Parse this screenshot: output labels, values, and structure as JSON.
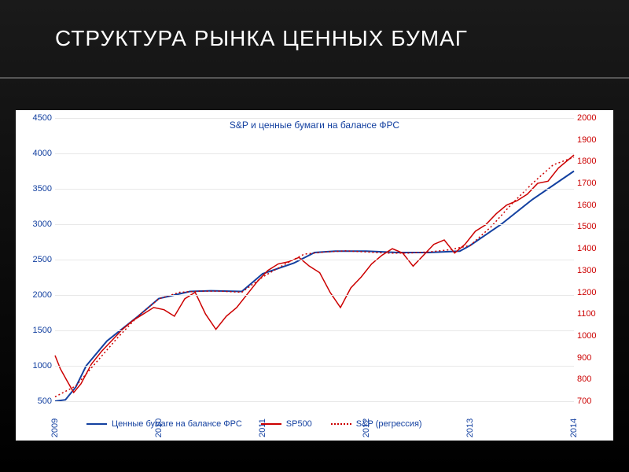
{
  "slide": {
    "title": "СТРУКТУРА РЫНКА ЦЕННЫХ БУМАГ",
    "title_color": "#ffffff",
    "title_fontsize": 28,
    "bg_gradient_from": "#1a1a1a",
    "bg_gradient_to": "#000000"
  },
  "chart": {
    "type": "line",
    "title": "S&P и ценные бумаги на балансе ФРС",
    "title_color": "#1340a0",
    "title_fontsize": 12,
    "background_color": "#ffffff",
    "grid_color": "#e8e8e8",
    "x": {
      "ticks": [
        "2009",
        "2010",
        "2011",
        "2012",
        "2013",
        "2014"
      ],
      "min": 2009,
      "max": 2014,
      "label_color": "#1340a0",
      "label_fontsize": 11
    },
    "y_left": {
      "min": 500,
      "max": 4500,
      "step": 500,
      "ticks": [
        500,
        1000,
        1500,
        2000,
        2500,
        3000,
        3500,
        4000,
        4500
      ],
      "label_color": "#1340a0",
      "label_fontsize": 11
    },
    "y_right": {
      "min": 700,
      "max": 2000,
      "step": 100,
      "ticks": [
        700,
        800,
        900,
        1000,
        1100,
        1200,
        1300,
        1400,
        1500,
        1600,
        1700,
        1800,
        1900,
        2000
      ],
      "label_color": "#cc0000",
      "label_fontsize": 11
    },
    "series": {
      "frs_balance": {
        "label": "Ценные бумаге на балансе ФРС",
        "axis": "left",
        "color": "#1340a0",
        "line_width": 2,
        "style": "solid",
        "points_x": [
          2009.0,
          2009.1,
          2009.2,
          2009.3,
          2009.5,
          2009.8,
          2010.0,
          2010.3,
          2010.5,
          2010.8,
          2011.0,
          2011.3,
          2011.5,
          2011.7,
          2012.0,
          2012.3,
          2012.6,
          2012.9,
          2013.0,
          2013.3,
          2013.6,
          2013.9,
          2014.0
        ],
        "points_y": [
          500,
          520,
          700,
          1000,
          1350,
          1700,
          1950,
          2050,
          2060,
          2050,
          2300,
          2450,
          2600,
          2620,
          2620,
          2600,
          2600,
          2620,
          2700,
          3000,
          3350,
          3650,
          3750
        ]
      },
      "sp500": {
        "label": "SP500",
        "axis": "right",
        "color": "#cc0000",
        "line_width": 1.5,
        "style": "solid",
        "points_x": [
          2009.0,
          2009.05,
          2009.12,
          2009.18,
          2009.25,
          2009.35,
          2009.45,
          2009.55,
          2009.65,
          2009.75,
          2009.85,
          2009.95,
          2010.05,
          2010.15,
          2010.25,
          2010.35,
          2010.45,
          2010.55,
          2010.65,
          2010.75,
          2010.85,
          2010.95,
          2011.05,
          2011.15,
          2011.25,
          2011.35,
          2011.45,
          2011.55,
          2011.65,
          2011.75,
          2011.85,
          2011.95,
          2012.05,
          2012.15,
          2012.25,
          2012.35,
          2012.45,
          2012.55,
          2012.65,
          2012.75,
          2012.85,
          2012.95,
          2013.05,
          2013.15,
          2013.25,
          2013.35,
          2013.45,
          2013.55,
          2013.65,
          2013.75,
          2013.85,
          2013.95,
          2014.0
        ],
        "points_y": [
          910,
          850,
          790,
          740,
          780,
          870,
          930,
          980,
          1030,
          1070,
          1100,
          1130,
          1120,
          1090,
          1170,
          1200,
          1100,
          1030,
          1090,
          1130,
          1190,
          1250,
          1300,
          1330,
          1340,
          1360,
          1320,
          1290,
          1200,
          1130,
          1220,
          1270,
          1330,
          1370,
          1400,
          1380,
          1320,
          1370,
          1420,
          1440,
          1380,
          1420,
          1480,
          1510,
          1560,
          1600,
          1620,
          1650,
          1700,
          1710,
          1770,
          1810,
          1830
        ]
      },
      "sp_regression": {
        "label": "S&P (регрессия)",
        "axis": "right",
        "color": "#cc0000",
        "line_width": 1.5,
        "style": "dotted",
        "points_x": [
          2009.0,
          2009.2,
          2009.4,
          2009.6,
          2009.8,
          2010.0,
          2010.2,
          2010.4,
          2010.6,
          2010.8,
          2011.0,
          2011.2,
          2011.4,
          2011.6,
          2011.8,
          2012.0,
          2012.2,
          2012.4,
          2012.6,
          2012.8,
          2013.0,
          2013.2,
          2013.4,
          2013.6,
          2013.8,
          2014.0
        ],
        "points_y": [
          720,
          770,
          880,
          990,
          1090,
          1170,
          1200,
          1205,
          1205,
          1200,
          1270,
          1325,
          1375,
          1385,
          1390,
          1385,
          1380,
          1380,
          1385,
          1395,
          1415,
          1500,
          1605,
          1700,
          1785,
          1820
        ]
      }
    },
    "legend": {
      "items": [
        "frs_balance",
        "sp500",
        "sp_regression"
      ],
      "fontsize": 11,
      "text_color": "#1340a0"
    }
  }
}
